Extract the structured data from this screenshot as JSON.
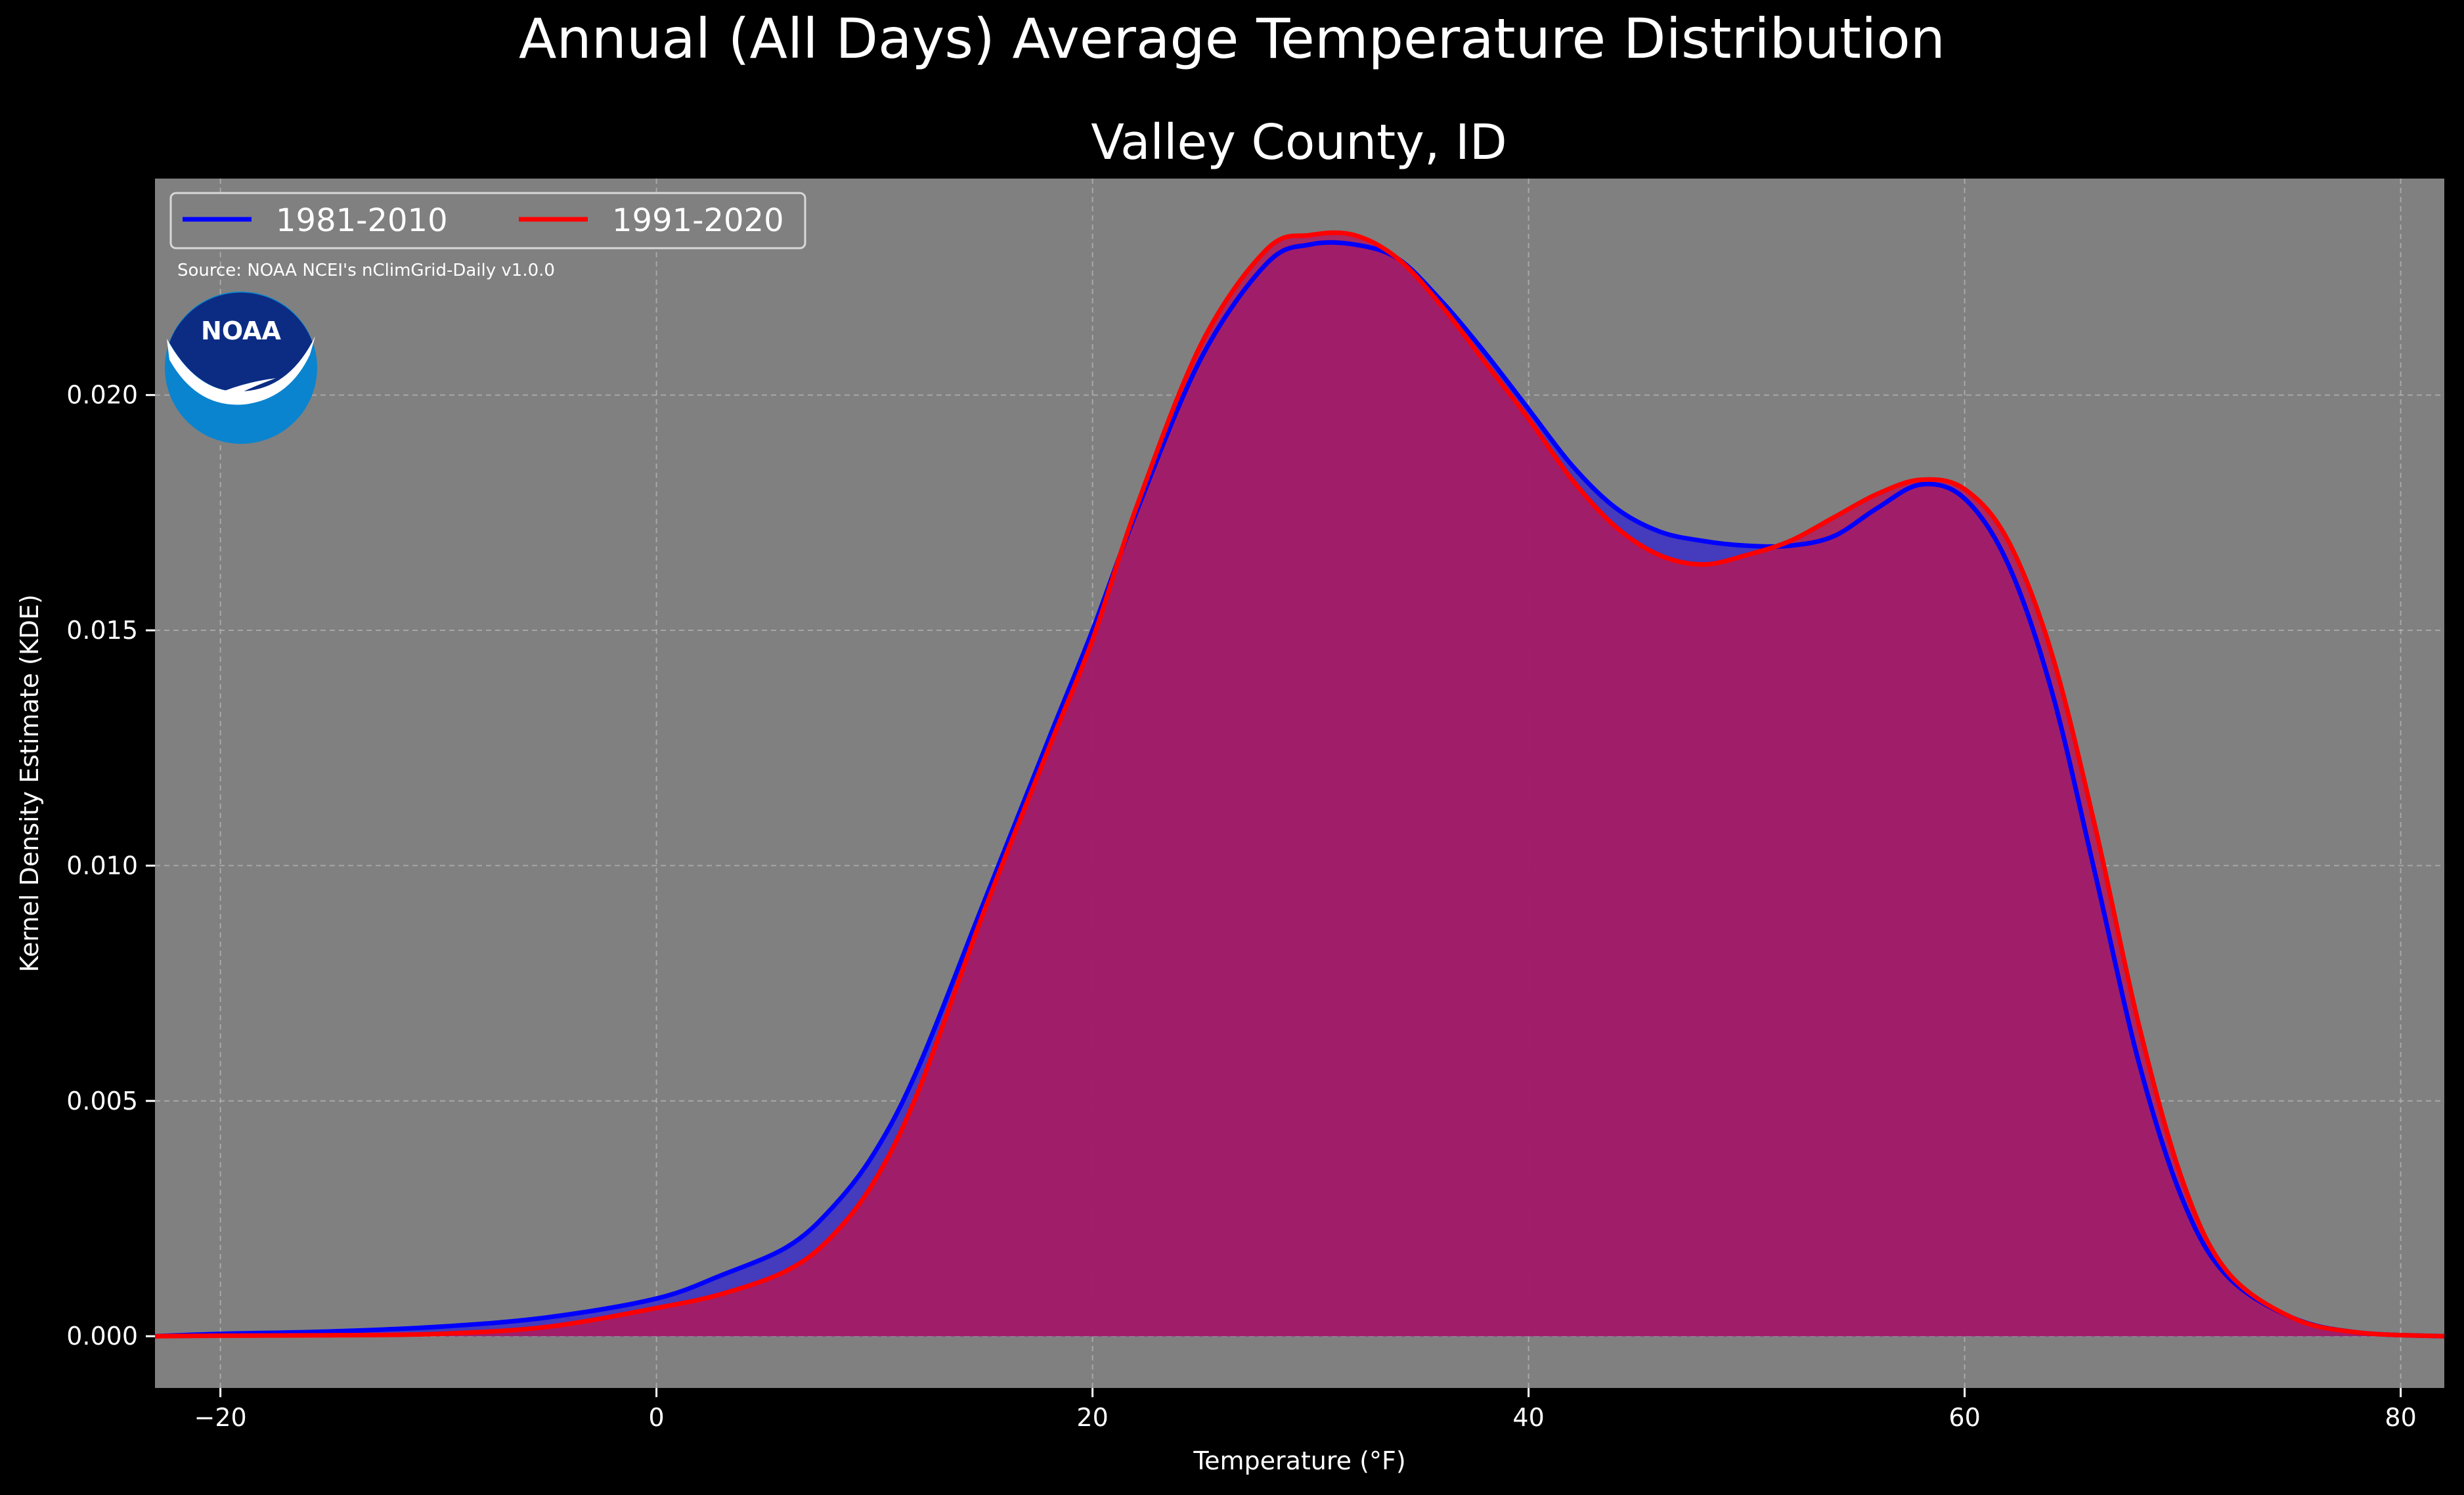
{
  "chart_data": {
    "type": "area",
    "suptitle": "Annual (All Days) Average Temperature Distribution",
    "title": "Valley County, ID",
    "xlabel": "Temperature (°F)",
    "ylabel": "Kernel Density Estimate (KDE)",
    "xlim": [
      -23,
      82
    ],
    "ylim": [
      -0.0011,
      0.0246
    ],
    "xticks": [
      -20,
      0,
      20,
      40,
      60,
      80
    ],
    "xtick_labels": [
      "−20",
      "0",
      "20",
      "40",
      "60",
      "80"
    ],
    "yticks": [
      0.0,
      0.005,
      0.01,
      0.015,
      0.02
    ],
    "ytick_labels": [
      "0.000",
      "0.005",
      "0.010",
      "0.015",
      "0.020"
    ],
    "grid": true,
    "legend_position": "top-left",
    "source": "Source: NOAA NCEI's nClimGrid-Daily v1.0.0",
    "logo_text": "NOAA",
    "background_color": "#000000",
    "plot_background": "#808080",
    "series": [
      {
        "name": "1981-2010",
        "color": "#0000ff",
        "fill_color": "#3a2fc8",
        "x": [
          -23,
          -20,
          -15,
          -10,
          -5,
          0,
          3,
          6,
          8,
          10,
          12,
          15,
          18,
          20,
          22,
          25,
          28,
          30,
          32,
          34,
          36,
          38,
          40,
          42,
          44,
          46,
          48,
          50,
          52,
          54,
          56,
          58,
          60,
          62,
          64,
          66,
          68,
          70,
          72,
          75,
          78,
          82
        ],
        "y": [
          0.0,
          5e-05,
          0.0001,
          0.0002,
          0.0004,
          0.0008,
          0.0013,
          0.0019,
          0.0027,
          0.0039,
          0.0057,
          0.0092,
          0.0127,
          0.015,
          0.0175,
          0.0208,
          0.0228,
          0.0232,
          0.0232,
          0.0229,
          0.022,
          0.0209,
          0.0197,
          0.0185,
          0.0176,
          0.0171,
          0.0169,
          0.0168,
          0.0168,
          0.017,
          0.0176,
          0.0181,
          0.0178,
          0.0164,
          0.0137,
          0.0098,
          0.0058,
          0.0029,
          0.0013,
          0.0004,
          8e-05,
          0.0
        ]
      },
      {
        "name": "1991-2020",
        "color": "#ff0000",
        "fill_color": "#b01a5a",
        "x": [
          -23,
          -20,
          -15,
          -10,
          -5,
          0,
          3,
          6,
          8,
          10,
          12,
          15,
          18,
          20,
          22,
          25,
          28,
          30,
          32,
          34,
          36,
          38,
          40,
          42,
          44,
          46,
          48,
          50,
          52,
          54,
          56,
          58,
          60,
          62,
          64,
          66,
          68,
          70,
          72,
          75,
          78,
          82
        ],
        "y": [
          0.0,
          1e-05,
          2e-05,
          5e-05,
          0.0002,
          0.0006,
          0.0009,
          0.0014,
          0.0021,
          0.0033,
          0.0052,
          0.009,
          0.0125,
          0.0148,
          0.0176,
          0.0211,
          0.0231,
          0.0234,
          0.0234,
          0.0229,
          0.0219,
          0.0207,
          0.0195,
          0.0182,
          0.0172,
          0.0166,
          0.0164,
          0.0166,
          0.0169,
          0.0174,
          0.0179,
          0.0182,
          0.018,
          0.0169,
          0.0145,
          0.0108,
          0.0066,
          0.0033,
          0.0014,
          0.0004,
          8e-05,
          0.0
        ]
      }
    ]
  }
}
